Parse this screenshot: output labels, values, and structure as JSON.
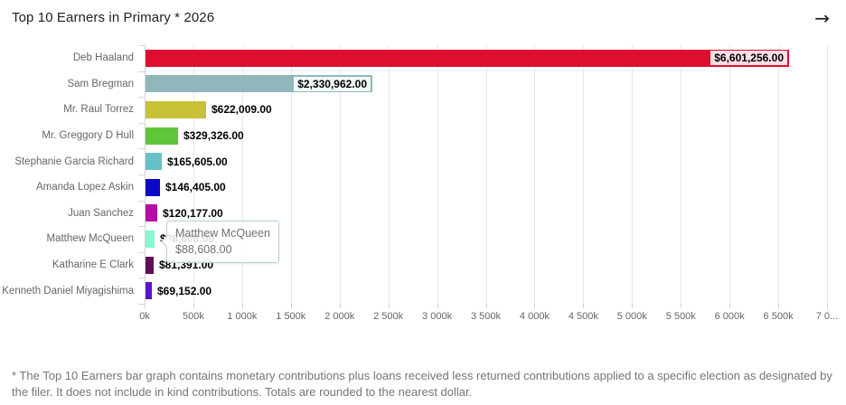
{
  "header": {
    "title": "Top 10 Earners in Primary * 2026",
    "arrow_glyph": "→"
  },
  "chart_data": {
    "type": "bar",
    "orientation": "horizontal",
    "title": "Top 10 Earners in Primary * 2026",
    "categories": [
      "Deb Haaland",
      "Sam Bregman",
      "Mr. Raul Torrez",
      "Mr. Greggory D Hull",
      "Stephanie Garcia Richard",
      "Amanda Lopez Askin",
      "Juan Sanchez",
      "Matthew McQueen",
      "Katharine E Clark",
      "Kenneth Daniel Miyagishima"
    ],
    "values": [
      6601256,
      2330962,
      622009,
      329326,
      165605,
      146405,
      120177,
      88608,
      81391,
      69152
    ],
    "value_labels": [
      "$6,601,256.00",
      "$2,330,962.00",
      "$622,009.00",
      "$329,326.00",
      "$165,605.00",
      "$146,405.00",
      "$120,177.00",
      "$88,608.00",
      "$81,391.00",
      "$69,152.00"
    ],
    "bar_colors": [
      "#dd0e2e",
      "#90b8bc",
      "#c9c138",
      "#5fc63a",
      "#66c1c9",
      "#0909c7",
      "#b50da5",
      "#8af5d5",
      "#5e0d58",
      "#5a14cf"
    ],
    "label_inside": [
      true,
      true,
      false,
      false,
      false,
      false,
      false,
      false,
      false,
      false
    ],
    "xlim": [
      0,
      7000000
    ],
    "x_tick_step": 500000,
    "x_tick_labels": [
      "0k",
      "500k",
      "1 000k",
      "1 500k",
      "2 000k",
      "2 500k",
      "3 000k",
      "3 500k",
      "4 000k",
      "4 500k",
      "5 000k",
      "5 500k",
      "6 000k",
      "6 500k",
      "7 0..."
    ],
    "grid": true,
    "xlabel": "",
    "ylabel": ""
  },
  "tooltip": {
    "title": "Matthew McQueen",
    "value": "$88,608.00",
    "category_index": 7
  },
  "footnote": "* The Top 10 Earners bar graph contains monetary contributions plus loans received less returned contributions applied to a specific election as designated by the filer. It does not include in kind contributions. Totals are rounded to the nearest dollar.",
  "colors": {
    "grid": "#e7e7e7",
    "axis": "#d4d4d4",
    "category_label": "#666666",
    "value_label": "#000000",
    "tick_label": "#666666",
    "tooltip_border": "#b4d3c6",
    "tooltip_text": "#707070",
    "title_text": "#212121",
    "footnote_text": "#757575"
  }
}
